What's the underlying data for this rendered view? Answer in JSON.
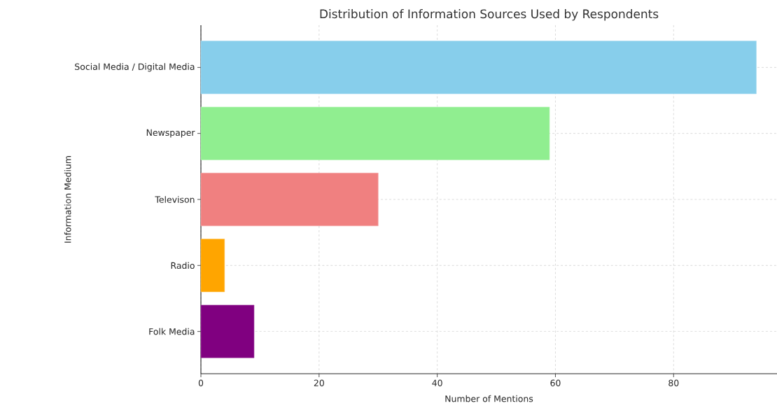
{
  "chart_data": {
    "type": "bar",
    "orientation": "horizontal",
    "title": "Distribution of Information Sources Used by Respondents",
    "xlabel": "Number of Mentions",
    "ylabel": "Information Medium",
    "categories": [
      "Social Media / Digital Media",
      "Newspaper",
      "Televison",
      "Radio",
      "Folk Media"
    ],
    "values": [
      94,
      59,
      30,
      4,
      9
    ],
    "colors": [
      "#87ceeb",
      "#90ee90",
      "#f08080",
      "#ffa500",
      "#800080"
    ],
    "xlim": [
      0,
      97.5
    ],
    "xticks": [
      0,
      20,
      40,
      60,
      80
    ],
    "grid": true
  }
}
